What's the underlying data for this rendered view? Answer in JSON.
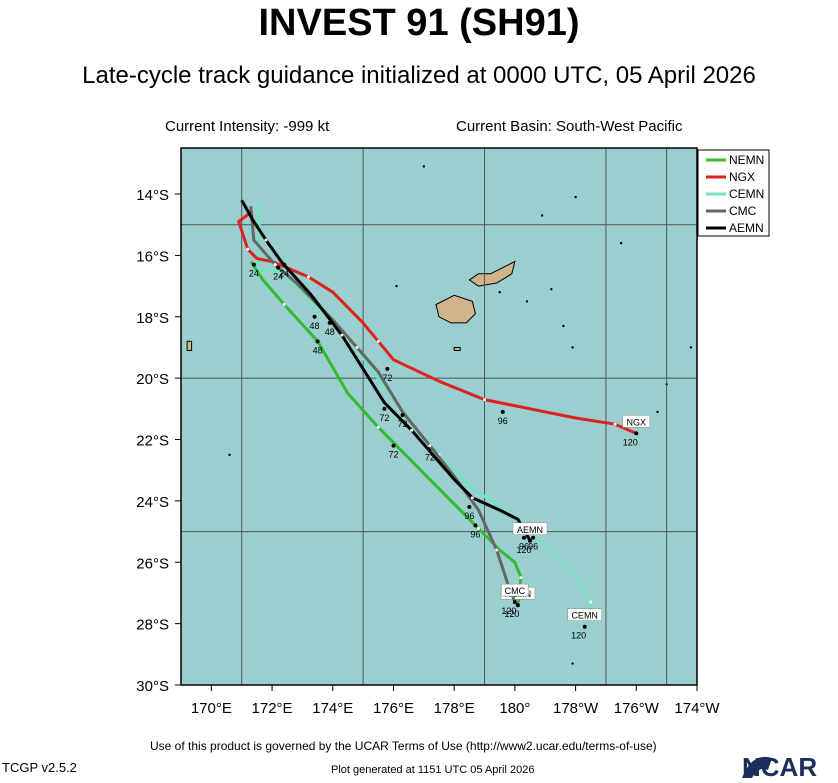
{
  "header": {
    "title": "INVEST 91 (SH91)",
    "subtitle": "Late-cycle track guidance initialized at 0000 UTC, 05 April 2026",
    "intensity": "Current Intensity: -999 kt",
    "basin": "Current Basin: South-West Pacific"
  },
  "axes": {
    "lon_ticks": [
      "170°E",
      "172°E",
      "174°E",
      "176°E",
      "178°E",
      "180°",
      "178°W",
      "176°W",
      "174°W"
    ],
    "lat_ticks": [
      "14°S",
      "16°S",
      "18°S",
      "20°S",
      "22°S",
      "24°S",
      "26°S",
      "28°S",
      "30°S"
    ]
  },
  "chart_data": {
    "type": "line",
    "x_label_units": "longitude (degrees east, 0-360)",
    "y_label_units": "latitude (degrees south)",
    "xlim": [
      169,
      186
    ],
    "ylim": [
      12.5,
      30
    ],
    "grid": true,
    "legend_placement": "top-right",
    "series": [
      {
        "name": "NEMN",
        "color": "#33bb33",
        "points": [
          [
            171.3,
            16.2
          ],
          [
            171.7,
            16.8
          ],
          [
            172.4,
            17.6
          ],
          [
            173.5,
            18.8
          ],
          [
            174.5,
            20.5
          ],
          [
            175.5,
            21.6
          ],
          [
            176.7,
            22.8
          ],
          [
            177.8,
            23.9
          ],
          [
            178.8,
            24.9
          ],
          [
            179.5,
            25.6
          ],
          [
            180.0,
            26.0
          ],
          [
            180.2,
            26.5
          ],
          [
            180.1,
            27.4
          ]
        ],
        "labels": [
          {
            "text": "24",
            "lon": 171.4,
            "lat": 16.3
          },
          {
            "text": "48",
            "lon": 173.5,
            "lat": 18.8
          },
          {
            "text": "72",
            "lon": 176.0,
            "lat": 22.2
          },
          {
            "text": "96",
            "lon": 178.7,
            "lat": 24.8
          }
        ],
        "end_label": "NEMN",
        "end_hour": "120"
      },
      {
        "name": "NGX",
        "color": "#dd2222",
        "points": [
          [
            171.3,
            14.6
          ],
          [
            170.9,
            14.9
          ],
          [
            171.2,
            15.8
          ],
          [
            171.5,
            16.1
          ],
          [
            172.0,
            16.2
          ],
          [
            173.2,
            16.7
          ],
          [
            174.0,
            17.2
          ],
          [
            175.0,
            18.2
          ],
          [
            175.5,
            18.8
          ],
          [
            176.0,
            19.4
          ],
          [
            177.5,
            20.1
          ],
          [
            179.0,
            20.7
          ],
          [
            180.5,
            21.0
          ],
          [
            182.0,
            21.3
          ],
          [
            183.3,
            21.5
          ],
          [
            184.0,
            21.8
          ]
        ],
        "labels": [
          {
            "text": "72",
            "lon": 175.8,
            "lat": 19.7
          },
          {
            "text": "96",
            "lon": 179.6,
            "lat": 21.1
          }
        ],
        "end_label": "NGX",
        "end_hour": "120"
      },
      {
        "name": "CEMN",
        "color": "#77e0c0",
        "points": [
          [
            171.5,
            14.3
          ],
          [
            171.6,
            15.2
          ],
          [
            171.5,
            16.5
          ],
          [
            172.3,
            16.5
          ],
          [
            173.5,
            17.7
          ],
          [
            174.5,
            18.7
          ],
          [
            175.5,
            20.0
          ],
          [
            176.5,
            21.4
          ],
          [
            177.5,
            22.5
          ],
          [
            178.5,
            23.5
          ],
          [
            179.5,
            24.2
          ],
          [
            180.3,
            24.8
          ],
          [
            181.3,
            25.8
          ],
          [
            182.0,
            26.5
          ],
          [
            182.5,
            27.3
          ],
          [
            182.3,
            28.1
          ]
        ],
        "labels": [
          {
            "text": "72",
            "lon": 177.2,
            "lat": 22.3
          },
          {
            "text": "96",
            "lon": 180.6,
            "lat": 25.2
          }
        ],
        "end_label": "CEMN",
        "end_hour": "120"
      },
      {
        "name": "CMC",
        "color": "#666666",
        "points": [
          [
            171.3,
            14.4
          ],
          [
            171.4,
            15.5
          ],
          [
            172.1,
            16.3
          ],
          [
            172.8,
            16.9
          ],
          [
            174.0,
            18.1
          ],
          [
            174.8,
            19.0
          ],
          [
            175.5,
            19.8
          ],
          [
            176.3,
            21.1
          ],
          [
            177.2,
            22.2
          ],
          [
            178.0,
            23.2
          ],
          [
            178.8,
            24.3
          ],
          [
            179.4,
            25.6
          ],
          [
            179.8,
            26.8
          ],
          [
            180.0,
            27.3
          ]
        ],
        "labels": [
          {
            "text": "24",
            "lon": 172.2,
            "lat": 16.4
          },
          {
            "text": "48",
            "lon": 173.9,
            "lat": 18.2
          },
          {
            "text": "72",
            "lon": 176.3,
            "lat": 21.2
          },
          {
            "text": "96",
            "lon": 178.5,
            "lat": 24.2
          }
        ],
        "end_label": "CMC",
        "end_hour": "120"
      },
      {
        "name": "AEMN",
        "color": "#000000",
        "points": [
          [
            171.0,
            14.2
          ],
          [
            171.4,
            14.9
          ],
          [
            171.8,
            15.5
          ],
          [
            172.3,
            16.2
          ],
          [
            173.3,
            17.3
          ],
          [
            174.3,
            18.6
          ],
          [
            175.0,
            19.7
          ],
          [
            175.7,
            20.8
          ],
          [
            176.6,
            21.7
          ],
          [
            177.3,
            22.5
          ],
          [
            178.0,
            23.3
          ],
          [
            178.6,
            23.9
          ],
          [
            179.5,
            24.3
          ],
          [
            180.1,
            24.6
          ],
          [
            180.5,
            25.3
          ]
        ],
        "labels": [
          {
            "text": "24",
            "lon": 172.4,
            "lat": 16.3
          },
          {
            "text": "48",
            "lon": 173.4,
            "lat": 18.0
          },
          {
            "text": "72",
            "lon": 175.7,
            "lat": 21.0
          },
          {
            "text": "96",
            "lon": 180.3,
            "lat": 25.2
          }
        ],
        "end_label": "AEMN",
        "end_hour": "120"
      }
    ]
  },
  "footer": {
    "terms": "Use of this product is governed by the UCAR Terms of Use (http://www2.ucar.edu/terms-of-use)",
    "version": "TCGP v2.5.2",
    "generated": "Plot generated at 1151 UTC   05 April 2026",
    "logo": "NCAR"
  },
  "colors": {
    "ocean": "#9bcfcf",
    "land": "#d2b48c",
    "frame": "#000000"
  }
}
